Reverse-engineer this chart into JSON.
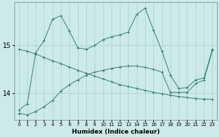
{
  "xlabel": "Humidex (Indice chaleur)",
  "background_color": "#cceae7",
  "grid_color": "#aad4d0",
  "line_color": "#2d7d74",
  "x_labels": [
    "0",
    "1",
    "2",
    "3",
    "4",
    "5",
    "6",
    "7",
    "8",
    "9",
    "10",
    "11",
    "12",
    "13",
    "14",
    "15",
    "16",
    "17",
    "18",
    "19",
    "20",
    "21",
    "22",
    "23"
  ],
  "yticks": [
    14,
    15
  ],
  "ylim": [
    13.45,
    15.9
  ],
  "series_top": [
    13.65,
    13.78,
    14.85,
    15.1,
    15.55,
    15.62,
    15.3,
    14.95,
    14.92,
    15.0,
    15.12,
    15.18,
    15.22,
    15.28,
    15.65,
    15.78,
    15.32,
    14.88,
    14.38,
    14.1,
    14.12,
    14.28,
    14.32,
    14.92
  ],
  "series_mid": [
    14.92,
    14.88,
    14.82,
    14.75,
    14.68,
    14.62,
    14.55,
    14.48,
    14.42,
    14.36,
    14.3,
    14.24,
    14.18,
    14.14,
    14.1,
    14.06,
    14.02,
    13.99,
    13.96,
    13.93,
    13.91,
    13.89,
    13.88,
    13.87
  ],
  "series_bot": [
    13.58,
    13.55,
    13.62,
    13.72,
    13.85,
    14.05,
    14.18,
    14.28,
    14.38,
    14.44,
    14.48,
    14.52,
    14.55,
    14.57,
    14.57,
    14.54,
    14.5,
    14.44,
    14.02,
    14.02,
    14.02,
    14.2,
    14.28,
    14.9
  ]
}
